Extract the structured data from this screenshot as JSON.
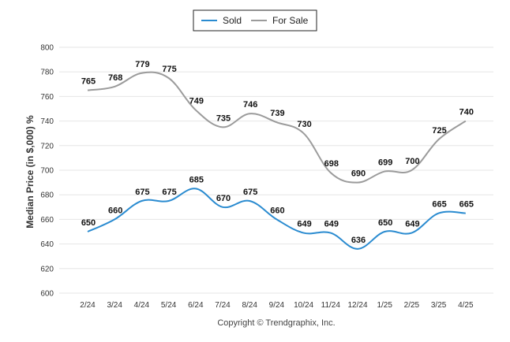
{
  "chart_data": {
    "type": "line",
    "categories": [
      "2/24",
      "3/24",
      "4/24",
      "5/24",
      "6/24",
      "7/24",
      "8/24",
      "9/24",
      "10/24",
      "11/24",
      "12/24",
      "1/25",
      "2/25",
      "3/25",
      "4/25"
    ],
    "series": [
      {
        "name": "Sold",
        "color": "#2a8bd0",
        "values": [
          650,
          660,
          675,
          675,
          685,
          670,
          675,
          660,
          649,
          649,
          636,
          650,
          649,
          665,
          665
        ]
      },
      {
        "name": "For Sale",
        "color": "#9b9b9b",
        "values": [
          765,
          768,
          779,
          775,
          749,
          735,
          746,
          739,
          730,
          698,
          690,
          699,
          700,
          725,
          740
        ]
      }
    ],
    "ylabel": "Median Price (in $,000) %",
    "xlabel": "",
    "ylim": [
      600,
      800
    ],
    "yticks": [
      600,
      620,
      640,
      660,
      680,
      700,
      720,
      740,
      760,
      780,
      800
    ],
    "grid": true,
    "legend_position": "top-center"
  },
  "footer": {
    "copyright": "Copyright © Trendgraphix, Inc."
  }
}
